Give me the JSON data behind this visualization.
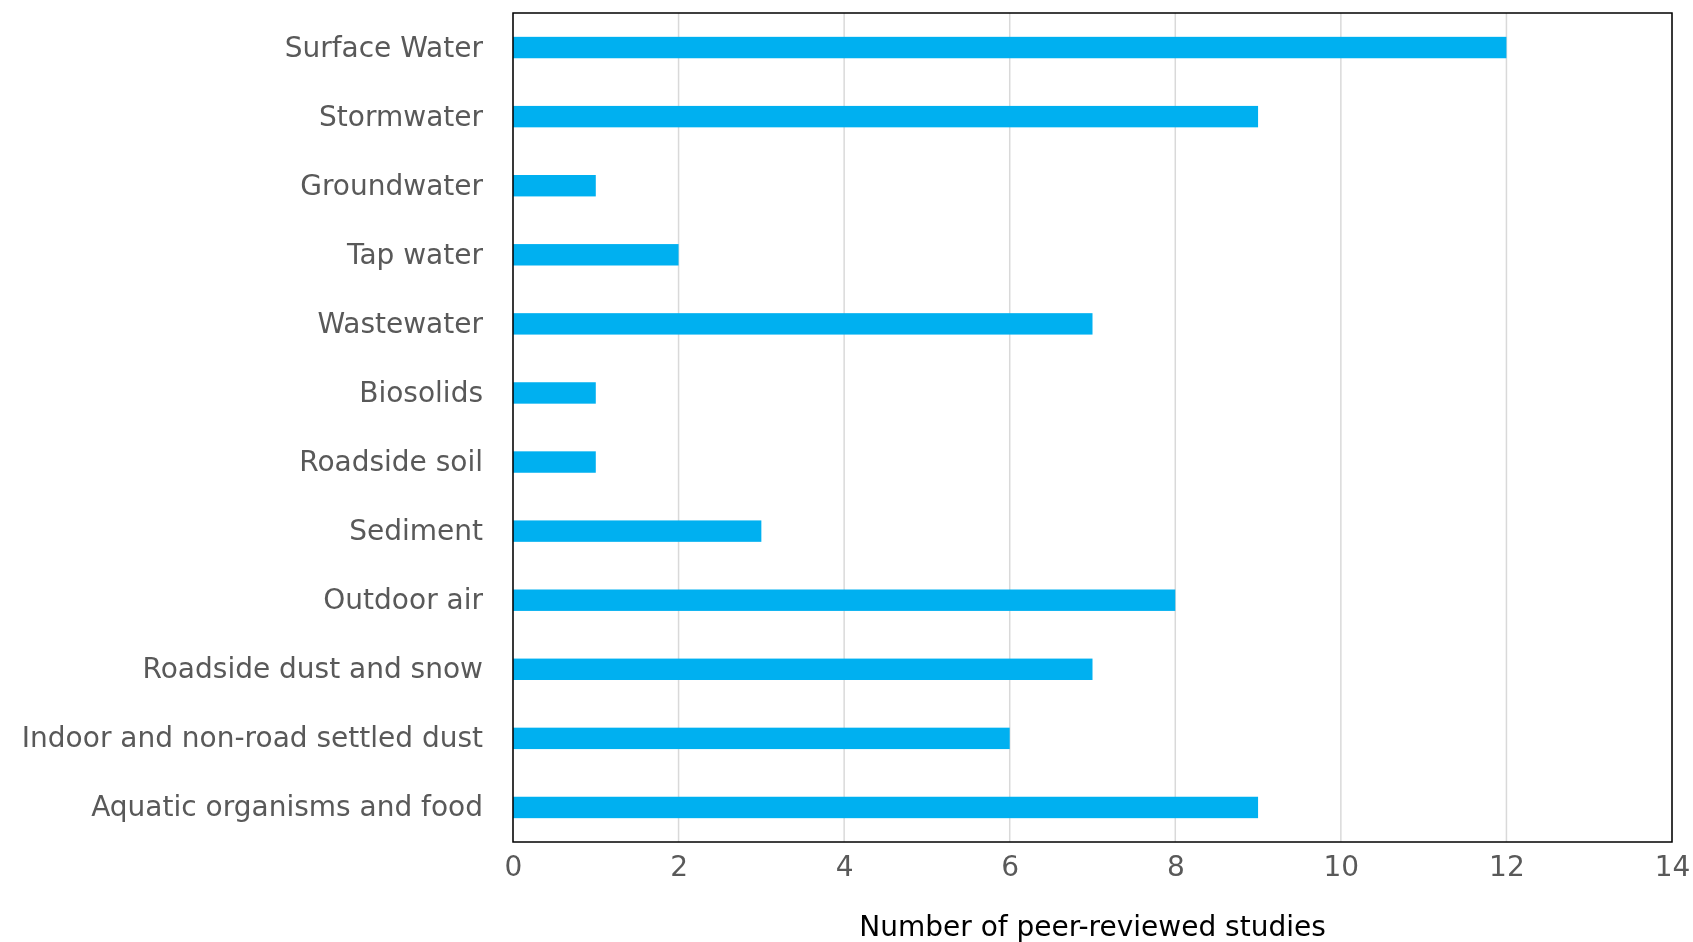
{
  "chart_data": {
    "type": "bar",
    "orientation": "horizontal",
    "xlabel": "Number of peer-reviewed studies",
    "categories": [
      "Surface Water",
      "Stormwater",
      "Groundwater",
      "Tap water",
      "Wastewater",
      "Biosolids",
      "Roadside soil",
      "Sediment",
      "Outdoor air",
      "Roadside dust and snow",
      "Indoor and non-road settled dust",
      "Aquatic organisms and food"
    ],
    "values": [
      12,
      9,
      1,
      2,
      7,
      1,
      1,
      3,
      8,
      7,
      6,
      9
    ],
    "color": "#00b0f0",
    "xlim": [
      0,
      14
    ],
    "xticks": [
      0,
      2,
      4,
      6,
      8,
      10,
      12,
      14
    ],
    "grid": "x"
  }
}
